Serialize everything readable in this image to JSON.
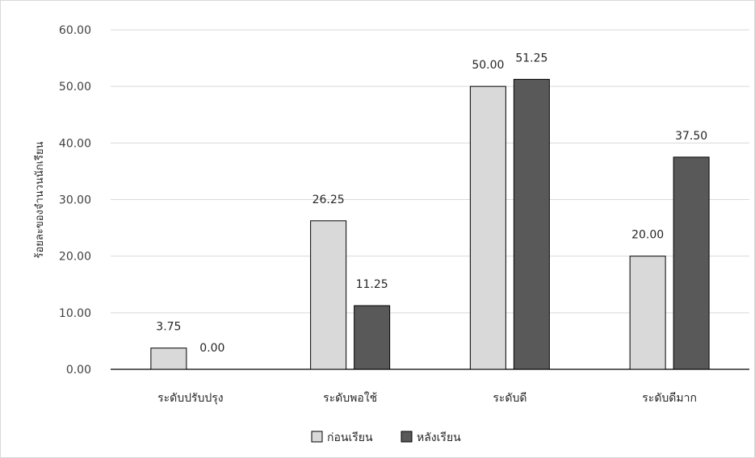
{
  "chart_data": {
    "type": "bar",
    "title": "",
    "xlabel": "",
    "ylabel": "ร้อยละของจำนวนนักเรียน",
    "ylim": [
      0,
      60
    ],
    "yticks": [
      "0.00",
      "10.00",
      "20.00",
      "30.00",
      "40.00",
      "50.00",
      "60.00"
    ],
    "grid": true,
    "legend_position": "bottom",
    "categories": [
      "ระดับปรับปรุง",
      "ระดับพอใช้",
      "ระดับดี",
      "ระดับดีมาก"
    ],
    "series": [
      {
        "name": "ก่อนเรียน",
        "color": "#d9d9d9",
        "values": [
          3.75,
          26.25,
          50.0,
          20.0
        ],
        "labels": [
          "3.75",
          "26.25",
          "50.00",
          "20.00"
        ]
      },
      {
        "name": "หลังเรียน",
        "color": "#595959",
        "values": [
          0.0,
          11.25,
          51.25,
          37.5
        ],
        "labels": [
          "0.00",
          "11.25",
          "51.25",
          "37.50"
        ]
      }
    ]
  }
}
